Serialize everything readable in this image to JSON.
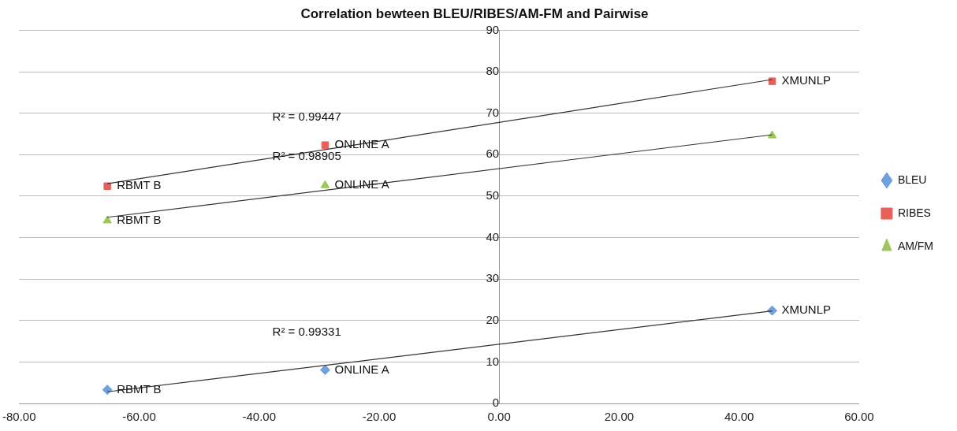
{
  "chart_data": {
    "type": "scatter",
    "title": "Correlation bewteen BLEU/RIBES/AM-FM and Pairwise",
    "series": [
      {
        "name": "BLEU",
        "color": "#6fa0e0",
        "marker": "diamond",
        "x": [
          -65.3,
          -29,
          45.5
        ],
        "values": [
          3.3,
          8.1,
          22.4
        ]
      },
      {
        "name": "RIBES",
        "color": "#e8605a",
        "marker": "square",
        "x": [
          -65.3,
          -29,
          45.5
        ],
        "values": [
          52.4,
          62.3,
          77.7
        ]
      },
      {
        "name": "AM/FM",
        "color": "#9cc85a",
        "marker": "triangle",
        "x": [
          -65.3,
          -29,
          45.5
        ],
        "values": [
          44.1,
          52.6,
          64.6
        ]
      },
      {
        "type": "line",
        "color": "#333333",
        "marker": "none",
        "x": [
          -65.3,
          45.5
        ],
        "values": [
          2.8,
          22.3
        ]
      },
      {
        "type": "line",
        "color": "#333333",
        "marker": "none",
        "x": [
          -65.3,
          45.5
        ],
        "values": [
          53,
          78.1
        ]
      },
      {
        "type": "line",
        "color": "#333333",
        "marker": "none",
        "x": [
          -65.3,
          45.5
        ],
        "values": [
          44.9,
          64.8
        ]
      }
    ],
    "xlim": [
      -80,
      60
    ],
    "xticks": [
      {
        "value": -80,
        "label": "-80.00"
      },
      {
        "value": -60,
        "label": "-60.00"
      },
      {
        "value": -40,
        "label": "-40.00"
      },
      {
        "value": -20,
        "label": "-20.00"
      },
      {
        "value": 0,
        "label": "0.00"
      },
      {
        "value": 20,
        "label": "20.00"
      },
      {
        "value": 40,
        "label": "40.00"
      },
      {
        "value": 60,
        "label": "60.00"
      }
    ],
    "ylim": [
      0,
      90
    ],
    "yticks": [
      0,
      10,
      20,
      30,
      40,
      50,
      60,
      70,
      80,
      90
    ],
    "grid": "y",
    "legend": "right",
    "annotations": [
      {
        "text": "RBMT B",
        "x": -65.3,
        "y": 3.3
      },
      {
        "text": "ONLINE A",
        "x": -29,
        "y": 8.1
      },
      {
        "text": "XMUNLP",
        "x": 45.5,
        "y": 22.4
      },
      {
        "text": "RBMT B",
        "x": -65.3,
        "y": 52.4
      },
      {
        "text": "ONLINE A",
        "x": -29,
        "y": 62.3
      },
      {
        "text": "XMUNLP",
        "x": 45.5,
        "y": 77.7
      },
      {
        "text": "RBMT B",
        "x": -65.3,
        "y": 44.1
      },
      {
        "text": "ONLINE A",
        "x": -29,
        "y": 52.6
      },
      "R² = 0.99331",
      "R² = 0.99447",
      "R² = 0.98905"
    ]
  }
}
